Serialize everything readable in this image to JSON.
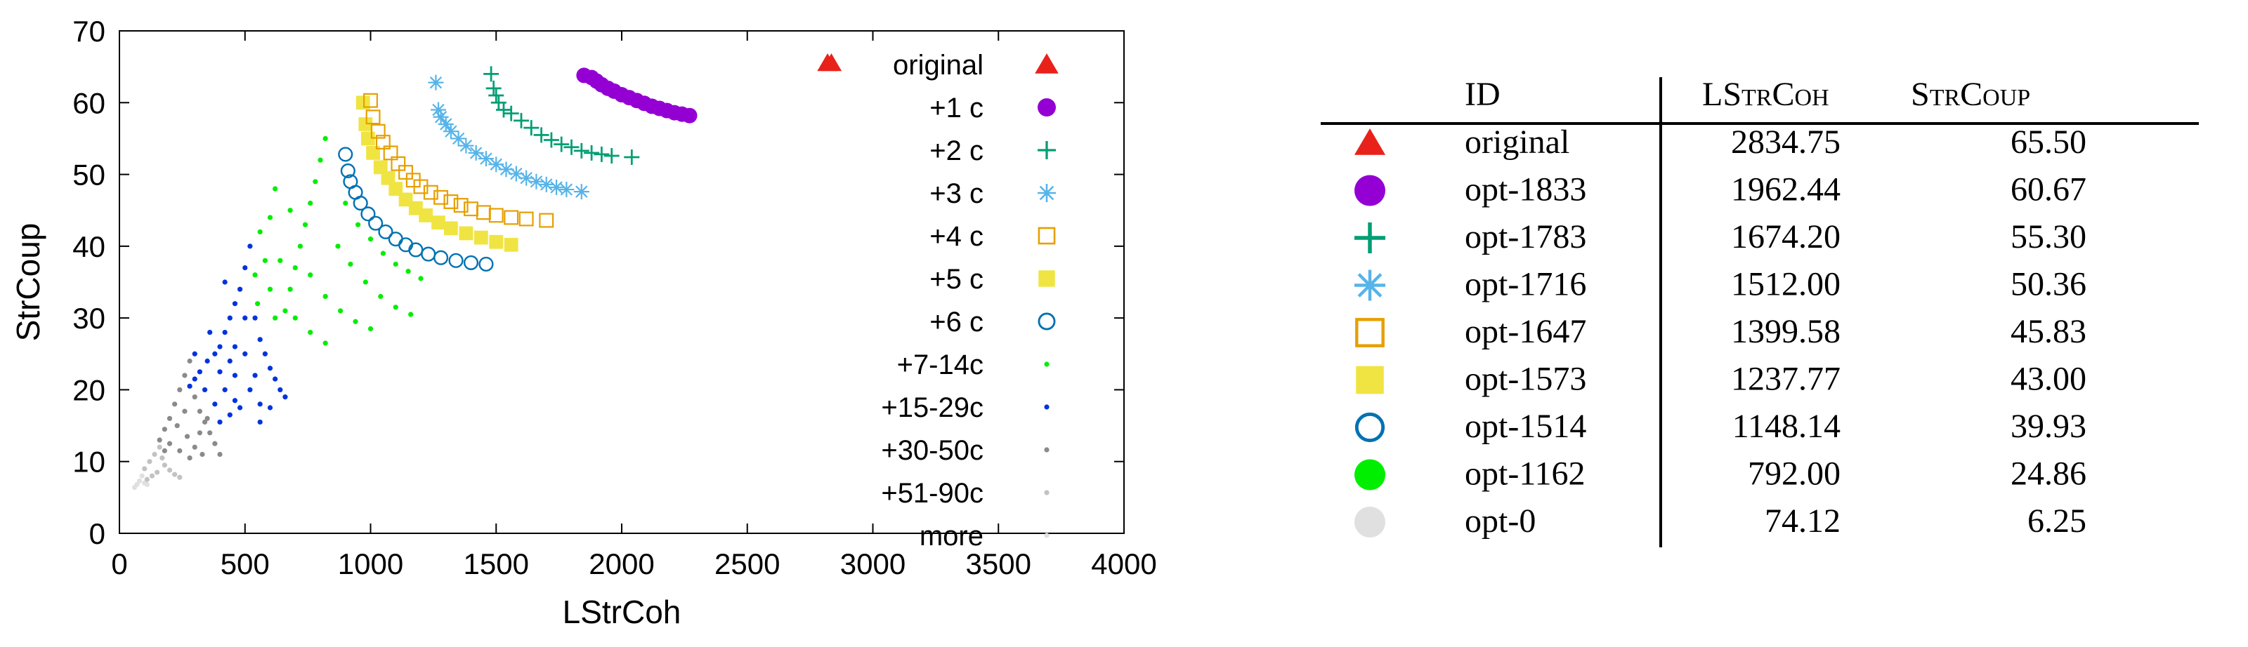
{
  "chart_data": [
    {
      "type": "scatter",
      "title": "",
      "xlabel": "LStrCoh",
      "ylabel": "StrCoup",
      "xlim": [
        0,
        4000
      ],
      "ylim": [
        0,
        70
      ],
      "xticks": [
        "0",
        "500",
        "1000",
        "1500",
        "2000",
        "2500",
        "3000",
        "3500",
        "4000"
      ],
      "yticks": [
        "0",
        "10",
        "20",
        "30",
        "40",
        "50",
        "60",
        "70"
      ],
      "legend_position": "top-right",
      "grid": false,
      "series": [
        {
          "name": "original",
          "marker": "triangle",
          "color": "#e8221b",
          "points": [
            [
              2834.75,
              65.5
            ]
          ]
        },
        {
          "name": "+1 c",
          "marker": "circle-filled",
          "color": "#9400d3",
          "points": [
            [
              1850,
              63.8
            ],
            [
              1880,
              63.5
            ],
            [
              1900,
              63.0
            ],
            [
              1920,
              62.5
            ],
            [
              1945,
              62.0
            ],
            [
              1970,
              61.6
            ],
            [
              2000,
              61.1
            ],
            [
              2030,
              60.7
            ],
            [
              2060,
              60.3
            ],
            [
              2090,
              59.9
            ],
            [
              2120,
              59.5
            ],
            [
              2150,
              59.2
            ],
            [
              2180,
              58.9
            ],
            [
              2210,
              58.6
            ],
            [
              2240,
              58.4
            ],
            [
              2270,
              58.2
            ]
          ]
        },
        {
          "name": "+2 c",
          "marker": "plus",
          "color": "#009e73",
          "points": [
            [
              1480,
              64.0
            ],
            [
              1490,
              62.0
            ],
            [
              1500,
              61.0
            ],
            [
              1510,
              60.0
            ],
            [
              1530,
              59.0
            ],
            [
              1560,
              58.5
            ],
            [
              1600,
              57.5
            ],
            [
              1640,
              56.5
            ],
            [
              1680,
              55.5
            ],
            [
              1720,
              54.8
            ],
            [
              1760,
              54.2
            ],
            [
              1800,
              53.8
            ],
            [
              1840,
              53.3
            ],
            [
              1880,
              53.0
            ],
            [
              1920,
              52.8
            ],
            [
              1960,
              52.6
            ],
            [
              2040,
              52.4
            ]
          ]
        },
        {
          "name": "+3 c",
          "marker": "star",
          "color": "#56b4e9",
          "points": [
            [
              1260,
              62.8
            ],
            [
              1270,
              59.0
            ],
            [
              1280,
              58.0
            ],
            [
              1300,
              57.0
            ],
            [
              1320,
              56.0
            ],
            [
              1350,
              55.0
            ],
            [
              1380,
              54.0
            ],
            [
              1420,
              53.0
            ],
            [
              1460,
              52.2
            ],
            [
              1500,
              51.4
            ],
            [
              1540,
              50.7
            ],
            [
              1580,
              50.1
            ],
            [
              1620,
              49.5
            ],
            [
              1660,
              49.0
            ],
            [
              1700,
              48.6
            ],
            [
              1740,
              48.2
            ],
            [
              1780,
              47.9
            ],
            [
              1840,
              47.6
            ]
          ]
        },
        {
          "name": "+4 c",
          "marker": "square-open",
          "color": "#e69f00",
          "points": [
            [
              1000,
              60.3
            ],
            [
              1010,
              58.0
            ],
            [
              1030,
              56.0
            ],
            [
              1050,
              54.5
            ],
            [
              1080,
              53.0
            ],
            [
              1110,
              51.5
            ],
            [
              1140,
              50.3
            ],
            [
              1170,
              49.2
            ],
            [
              1200,
              48.3
            ],
            [
              1240,
              47.5
            ],
            [
              1280,
              46.8
            ],
            [
              1320,
              46.2
            ],
            [
              1360,
              45.7
            ],
            [
              1400,
              45.2
            ],
            [
              1450,
              44.7
            ],
            [
              1500,
              44.3
            ],
            [
              1560,
              44.0
            ],
            [
              1620,
              43.8
            ],
            [
              1700,
              43.6
            ]
          ]
        },
        {
          "name": "+5 c",
          "marker": "square-filled",
          "color": "#f0e442",
          "points": [
            [
              970,
              60.0
            ],
            [
              980,
              57.0
            ],
            [
              990,
              55.0
            ],
            [
              1010,
              53.0
            ],
            [
              1040,
              51.0
            ],
            [
              1070,
              49.5
            ],
            [
              1100,
              48.0
            ],
            [
              1140,
              46.5
            ],
            [
              1180,
              45.3
            ],
            [
              1220,
              44.3
            ],
            [
              1270,
              43.3
            ],
            [
              1320,
              42.5
            ],
            [
              1380,
              41.8
            ],
            [
              1440,
              41.2
            ],
            [
              1500,
              40.6
            ],
            [
              1560,
              40.2
            ]
          ]
        },
        {
          "name": "+6 c",
          "marker": "circle-open",
          "color": "#0072b2",
          "points": [
            [
              900,
              52.8
            ],
            [
              910,
              50.5
            ],
            [
              920,
              49.0
            ],
            [
              940,
              47.5
            ],
            [
              960,
              46.0
            ],
            [
              990,
              44.5
            ],
            [
              1020,
              43.2
            ],
            [
              1060,
              42.0
            ],
            [
              1100,
              41.0
            ],
            [
              1140,
              40.2
            ],
            [
              1180,
              39.5
            ],
            [
              1230,
              38.9
            ],
            [
              1280,
              38.4
            ],
            [
              1340,
              38.0
            ],
            [
              1400,
              37.7
            ],
            [
              1460,
              37.5
            ]
          ]
        },
        {
          "name": "+7-14c",
          "marker": "dot",
          "color": "#00ee00",
          "points": [
            [
              820,
              55.0
            ],
            [
              800,
              52.0
            ],
            [
              780,
              49.0
            ],
            [
              760,
              46.0
            ],
            [
              740,
              43.0
            ],
            [
              720,
              40.0
            ],
            [
              700,
              37.0
            ],
            [
              680,
              34.0
            ],
            [
              660,
              31.0
            ],
            [
              560,
              42.0
            ],
            [
              580,
              38.0
            ],
            [
              600,
              34.0
            ],
            [
              620,
              30.0
            ],
            [
              540,
              36.0
            ],
            [
              550,
              32.0
            ],
            [
              900,
              46.0
            ],
            [
              950,
              43.0
            ],
            [
              1000,
              41.0
            ],
            [
              1050,
              39.0
            ],
            [
              1100,
              37.5
            ],
            [
              1150,
              36.5
            ],
            [
              1200,
              35.5
            ],
            [
              870,
              40.0
            ],
            [
              920,
              37.5
            ],
            [
              980,
              35.0
            ],
            [
              1040,
              33.0
            ],
            [
              1100,
              31.5
            ],
            [
              1160,
              30.5
            ],
            [
              760,
              36.0
            ],
            [
              820,
              33.0
            ],
            [
              880,
              31.0
            ],
            [
              940,
              29.5
            ],
            [
              1000,
              28.5
            ],
            [
              700,
              30.0
            ],
            [
              760,
              28.0
            ],
            [
              820,
              26.5
            ],
            [
              640,
              38.0
            ],
            [
              680,
              45.0
            ],
            [
              620,
              48.0
            ],
            [
              600,
              44.0
            ]
          ]
        },
        {
          "name": "+15-29c",
          "marker": "dot",
          "color": "#0033dd",
          "points": [
            [
              520,
              40.0
            ],
            [
              500,
              37.0
            ],
            [
              480,
              34.0
            ],
            [
              460,
              32.0
            ],
            [
              440,
              30.0
            ],
            [
              420,
              28.0
            ],
            [
              400,
              26.0
            ],
            [
              380,
              25.0
            ],
            [
              350,
              24.0
            ],
            [
              320,
              22.5
            ],
            [
              300,
              21.5
            ],
            [
              280,
              20.5
            ],
            [
              540,
              30.0
            ],
            [
              560,
              27.0
            ],
            [
              580,
              25.0
            ],
            [
              600,
              23.0
            ],
            [
              620,
              21.5
            ],
            [
              640,
              20.0
            ],
            [
              660,
              19.0
            ],
            [
              500,
              25.0
            ],
            [
              460,
              22.0
            ],
            [
              420,
              20.0
            ],
            [
              380,
              18.0
            ],
            [
              520,
              20.0
            ],
            [
              560,
              18.0
            ],
            [
              480,
              17.5
            ],
            [
              440,
              16.5
            ],
            [
              400,
              15.5
            ],
            [
              600,
              17.5
            ],
            [
              560,
              15.5
            ],
            [
              340,
              20.0
            ],
            [
              360,
              28.0
            ],
            [
              300,
              25.0
            ],
            [
              420,
              35.0
            ],
            [
              460,
              26.0
            ],
            [
              500,
              30.0
            ],
            [
              440,
              24.0
            ],
            [
              540,
              22.0
            ],
            [
              460,
              18.5
            ],
            [
              400,
              22.5
            ]
          ]
        },
        {
          "name": "+30-50c",
          "marker": "dot",
          "color": "#8a8a8a",
          "points": [
            [
              280,
              24.0
            ],
            [
              260,
              22.0
            ],
            [
              240,
              20.0
            ],
            [
              220,
              18.0
            ],
            [
              200,
              16.0
            ],
            [
              180,
              14.5
            ],
            [
              300,
              19.0
            ],
            [
              320,
              17.0
            ],
            [
              340,
              15.5
            ],
            [
              360,
              14.0
            ],
            [
              380,
              12.5
            ],
            [
              400,
              11.0
            ],
            [
              260,
              17.0
            ],
            [
              230,
              15.0
            ],
            [
              270,
              13.5
            ],
            [
              300,
              12.0
            ],
            [
              330,
              11.0
            ],
            [
              200,
              12.5
            ],
            [
              240,
              11.5
            ],
            [
              280,
              10.5
            ],
            [
              160,
              13.0
            ],
            [
              180,
              11.5
            ],
            [
              320,
              14.0
            ],
            [
              350,
              16.0
            ]
          ]
        },
        {
          "name": "+51-90c",
          "marker": "dot",
          "color": "#c2c2c2",
          "points": [
            [
              160,
              12.0
            ],
            [
              140,
              11.0
            ],
            [
              120,
              10.0
            ],
            [
              100,
              9.0
            ],
            [
              180,
              9.5
            ],
            [
              200,
              8.8
            ],
            [
              220,
              8.2
            ],
            [
              240,
              7.8
            ],
            [
              150,
              8.5
            ],
            [
              130,
              8.0
            ],
            [
              110,
              7.5
            ],
            [
              170,
              10.5
            ]
          ]
        },
        {
          "name": "more",
          "marker": "dot",
          "color": "#e0e0e0",
          "points": [
            [
              90,
              8.0
            ],
            [
              80,
              7.3
            ],
            [
              70,
              6.8
            ],
            [
              60,
              6.4
            ],
            [
              100,
              7.0
            ],
            [
              110,
              6.8
            ]
          ]
        }
      ]
    },
    {
      "type": "table",
      "columns": [
        "ID",
        "LStrCoh",
        "StrCoup"
      ],
      "rows": [
        {
          "marker": "triangle",
          "color": "#e8221b",
          "id": "original",
          "lstrcoh": "2834.75",
          "strcoup": "65.50"
        },
        {
          "marker": "circle-filled",
          "color": "#9400d3",
          "id": "opt-1833",
          "lstrcoh": "1962.44",
          "strcoup": "60.67"
        },
        {
          "marker": "plus",
          "color": "#009e73",
          "id": "opt-1783",
          "lstrcoh": "1674.20",
          "strcoup": "55.30"
        },
        {
          "marker": "star",
          "color": "#56b4e9",
          "id": "opt-1716",
          "lstrcoh": "1512.00",
          "strcoup": "50.36"
        },
        {
          "marker": "square-open",
          "color": "#e69f00",
          "id": "opt-1647",
          "lstrcoh": "1399.58",
          "strcoup": "45.83"
        },
        {
          "marker": "square-filled",
          "color": "#f0e442",
          "id": "opt-1573",
          "lstrcoh": "1237.77",
          "strcoup": "43.00"
        },
        {
          "marker": "circle-open",
          "color": "#0072b2",
          "id": "opt-1514",
          "lstrcoh": "1148.14",
          "strcoup": "39.93"
        },
        {
          "marker": "circle-filled",
          "color": "#00ee00",
          "id": "opt-1162",
          "lstrcoh": "792.00",
          "strcoup": "24.86"
        },
        {
          "marker": "circle-filled",
          "color": "#e0e0e0",
          "id": "opt-0",
          "lstrcoh": "74.12",
          "strcoup": "6.25"
        }
      ]
    }
  ]
}
